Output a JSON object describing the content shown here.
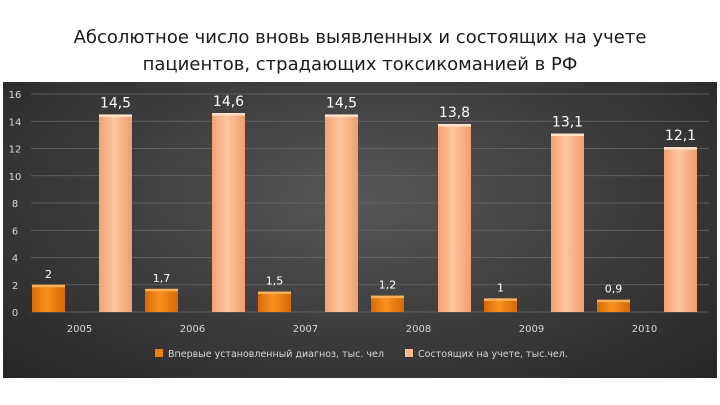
{
  "title": {
    "line1": "Абсолютное число вновь выявленных и состоящих на учете",
    "line2": "пациентов, страдающих токсикоманией в РФ"
  },
  "chart_data": {
    "type": "bar",
    "categories": [
      "2005",
      "2006",
      "2007",
      "2008",
      "2009",
      "2010"
    ],
    "series": [
      {
        "name": "Впервые установленный диагноз, тыс. чел",
        "values": [
          2,
          1.7,
          1.5,
          1.2,
          1,
          0.9
        ],
        "labels": [
          "2",
          "1,7",
          "1,5",
          "1,2",
          "1",
          "0,9"
        ],
        "color": "#f07f09"
      },
      {
        "name": "Состоящих на учете, тыс.чел.",
        "values": [
          14.5,
          14.6,
          14.5,
          13.8,
          13.1,
          12.1
        ],
        "labels": [
          "14,5",
          "14,6",
          "14,5",
          "13,8",
          "13,1",
          "12,1"
        ],
        "color": "#fbb98c"
      }
    ],
    "ylim": [
      0,
      16
    ],
    "yticks": [
      "0",
      "2",
      "4",
      "6",
      "8",
      "10",
      "12",
      "14",
      "16"
    ],
    "grid": true,
    "legend_position": "bottom"
  }
}
